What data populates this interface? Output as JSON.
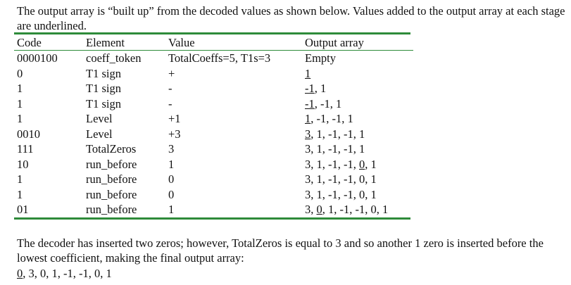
{
  "intro_text": "The output array is “built up” from the decoded values as shown below. Values added to the output array at each stage are underlined.",
  "table": {
    "headers": [
      "Code",
      "Element",
      "Value",
      "Output array"
    ],
    "rows": [
      {
        "code": "0000100",
        "element": "coeff_token",
        "value": "TotalCoeffs=5, T1s=3",
        "output_pre": "Empty",
        "output_u": "",
        "output_post": ""
      },
      {
        "code": "0",
        "element": "T1 sign",
        "value": "+",
        "output_pre": "",
        "output_u": "1",
        "output_post": ""
      },
      {
        "code": "1",
        "element": "T1 sign",
        "value": "-",
        "output_pre": "",
        "output_u": "-1",
        "output_post": ", 1"
      },
      {
        "code": "1",
        "element": "T1 sign",
        "value": "-",
        "output_pre": "",
        "output_u": "-1",
        "output_post": ", -1, 1"
      },
      {
        "code": "1",
        "element": "Level",
        "value": "+1",
        "output_pre": "",
        "output_u": "1",
        "output_post": ", -1, -1, 1"
      },
      {
        "code": "0010",
        "element": "Level",
        "value": "+3",
        "output_pre": "",
        "output_u": "3",
        "output_post": ", 1, -1, -1, 1"
      },
      {
        "code": "111",
        "element": "TotalZeros",
        "value": "3",
        "output_pre": "3, 1, -1, -1, 1",
        "output_u": "",
        "output_post": ""
      },
      {
        "code": "10",
        "element": "run_before",
        "value": "1",
        "output_pre": "3, 1, -1, -1, ",
        "output_u": "0",
        "output_post": ", 1"
      },
      {
        "code": "1",
        "element": "run_before",
        "value": "0",
        "output_pre": "3, 1, -1, -1, 0, 1",
        "output_u": "",
        "output_post": ""
      },
      {
        "code": "1",
        "element": "run_before",
        "value": "0",
        "output_pre": "3, 1, -1, -1, 0, 1",
        "output_u": "",
        "output_post": ""
      },
      {
        "code": "01",
        "element": "run_before",
        "value": "1",
        "output_pre": "3, ",
        "output_u": "0",
        "output_post": ", 1, -1, -1, 0, 1"
      }
    ]
  },
  "outro_text": "The decoder has inserted two zeros; however, TotalZeros is equal to 3 and so another 1 zero is inserted before the lowest coefficient, making the final output array:",
  "final_array": {
    "underlined": "0",
    "rest": ", 3, 0, 1, -1, -1, 0, 1"
  },
  "colors": {
    "rule": "#2e8b3a",
    "text": "#111111"
  }
}
